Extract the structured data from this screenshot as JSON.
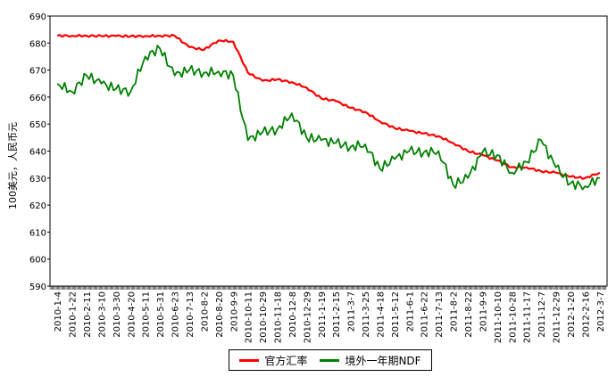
{
  "chart_data": {
    "type": "line",
    "ylabel": "100美元，人民币元",
    "ylim": [
      590,
      690
    ],
    "yticks": [
      590,
      600,
      610,
      620,
      630,
      640,
      650,
      660,
      670,
      680,
      690
    ],
    "xticks": [
      "2010-1-4",
      "2010-1-22",
      "2010-2-11",
      "2010-3-10",
      "2010-3-30",
      "2010-4-20",
      "2010-5-11",
      "2010-5-31",
      "2010-6-23",
      "2010-7-13",
      "2010-8-2",
      "2010-8-20",
      "2010-9-9",
      "2010-10-11",
      "2010-10-29",
      "2010-11-18",
      "2010-12-8",
      "2010-12-29",
      "2011-1-19",
      "2011-2-15",
      "2011-3-7",
      "2011-3-25",
      "2011-4-18",
      "2011-5-12",
      "2011-6-1",
      "2011-6-22",
      "2011-7-13",
      "2011-8-2",
      "2011-8-22",
      "2011-9-9",
      "2011-10-10",
      "2011-10-28",
      "2011-11-17",
      "2011-12-7",
      "2011-12-29",
      "2012-1-20",
      "2012-2-16",
      "2012-3-7"
    ],
    "series": [
      {
        "name": "官方汇率",
        "color": "#ff0000",
        "values": [
          682.7,
          682.7,
          682.7,
          682.6,
          682.6,
          682.5,
          682.6,
          682.7,
          682.7,
          678.5,
          677.5,
          681.0,
          680.5,
          669.0,
          666.0,
          666.5,
          665.5,
          663.5,
          659.5,
          658.5,
          656.0,
          654.5,
          651.0,
          648.5,
          647.5,
          646.5,
          645.5,
          643.0,
          640.0,
          638.5,
          636.5,
          634.0,
          634.0,
          632.5,
          632.0,
          630.5,
          630.0,
          632.0
        ]
      },
      {
        "name": "境外一年期NDF",
        "color": "#008000",
        "values": [
          665.0,
          662.0,
          668.0,
          665.0,
          663.0,
          662.0,
          675.0,
          678.0,
          668.0,
          670.0,
          669.0,
          669.5,
          668.0,
          644.0,
          647.0,
          648.0,
          654.0,
          645.0,
          644.0,
          643.0,
          641.5,
          642.5,
          633.5,
          637.0,
          640.0,
          639.5,
          640.0,
          627.5,
          630.0,
          639.5,
          638.5,
          632.0,
          636.0,
          644.0,
          634.0,
          628.0,
          627.0,
          630.0
        ]
      }
    ]
  }
}
